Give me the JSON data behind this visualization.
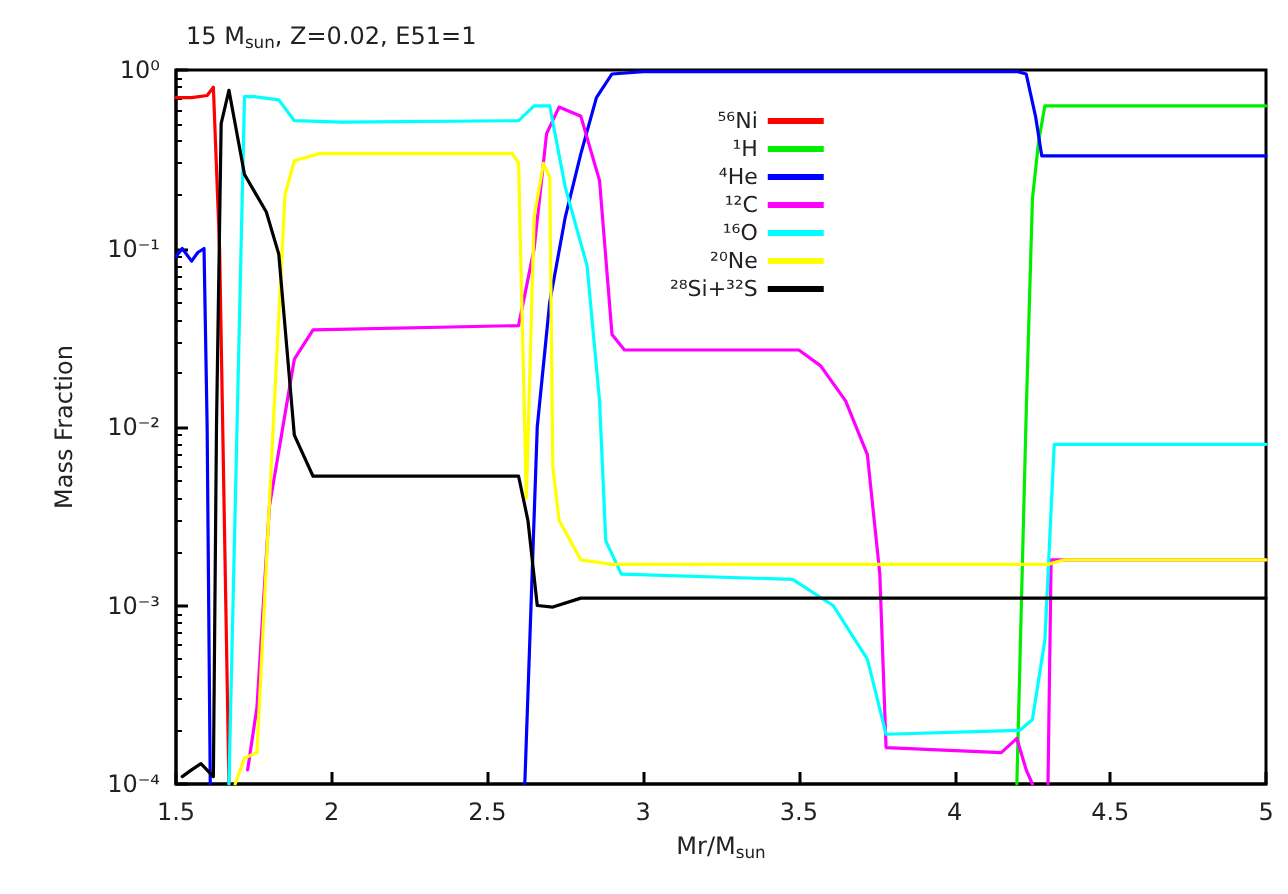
{
  "chart_data": {
    "type": "line",
    "title": "15 M$_{sun}$, Z=0.02, E51=1",
    "xlabel": "Mr/M$_{sun}$",
    "ylabel": "Mass Fraction",
    "xlim": [
      1.5,
      5
    ],
    "xticks": [
      1.5,
      2,
      2.5,
      3,
      3.5,
      4,
      4.5,
      5
    ],
    "ylim": [
      0.0001,
      1
    ],
    "yticks": [
      {
        "value": 0.0001,
        "label": "10⁻⁴"
      },
      {
        "value": 0.001,
        "label": "10⁻³"
      },
      {
        "value": 0.01,
        "label": "10⁻²"
      },
      {
        "value": 0.1,
        "label": "10⁻¹"
      },
      {
        "value": 1,
        "label": "10⁰"
      }
    ],
    "log": "y",
    "grid": false,
    "legend": "top right",
    "marker": "none",
    "line_style": "solid",
    "series": [
      {
        "name": "⁵⁶Ni",
        "color": "#ff0000",
        "x": [
          1.5,
          1.55,
          1.6,
          1.62,
          1.64,
          1.66,
          1.67
        ],
        "values": [
          0.7,
          0.7,
          0.72,
          0.8,
          0.1,
          0.001,
          0.0001
        ]
      },
      {
        "name": "¹H",
        "color": "#00ee00",
        "x": [
          4.2,
          4.23,
          4.25,
          4.27,
          4.29,
          5
        ],
        "values": [
          0.0001,
          0.012,
          0.19,
          0.4,
          0.63,
          0.63
        ]
      },
      {
        "name": "⁴He",
        "color": "#0000ff",
        "x": [
          1.5,
          1.52,
          1.55,
          1.57,
          1.59,
          1.6,
          1.61,
          1.62,
          2.62,
          2.64,
          2.66,
          2.7,
          2.75,
          2.8,
          2.85,
          2.9,
          3,
          4.2,
          4.23,
          4.26,
          4.28,
          5
        ],
        "values": [
          0.09,
          0.1,
          0.085,
          0.095,
          0.1,
          0.01,
          0.0001,
          null,
          0.0001,
          0.001,
          0.01,
          0.05,
          0.15,
          0.34,
          0.7,
          0.95,
          0.98,
          0.98,
          0.95,
          0.55,
          0.33,
          0.33
        ]
      },
      {
        "name": "¹²C",
        "color": "#ff00ff",
        "x": [
          1.73,
          1.76,
          1.8,
          1.88,
          1.94,
          2.6,
          2.65,
          2.69,
          2.73,
          2.8,
          2.86,
          2.9,
          2.94,
          3.5,
          3.57,
          3.65,
          3.72,
          3.76,
          3.78,
          4.15,
          4.2,
          4.23,
          4.25,
          4.27,
          4.3,
          4.31,
          5
        ],
        "values": [
          0.00012,
          0.00027,
          0.0036,
          0.024,
          0.035,
          0.037,
          0.1,
          0.44,
          0.62,
          0.55,
          0.24,
          0.033,
          0.027,
          0.027,
          0.022,
          0.014,
          0.007,
          0.0015,
          0.00016,
          0.00015,
          0.00018,
          0.00012,
          0.0001,
          null,
          0.0001,
          0.0018,
          0.0018
        ]
      },
      {
        "name": "¹⁶O",
        "color": "#00ffff",
        "x": [
          1.67,
          1.72,
          1.75,
          1.83,
          1.88,
          2.03,
          2.6,
          2.65,
          2.7,
          2.75,
          2.82,
          2.86,
          2.88,
          2.93,
          3.48,
          3.61,
          3.72,
          3.78,
          4.21,
          4.25,
          4.29,
          4.32,
          5
        ],
        "values": [
          0.0001,
          0.71,
          0.71,
          0.68,
          0.52,
          0.51,
          0.52,
          0.63,
          0.63,
          0.22,
          0.08,
          0.014,
          0.0023,
          0.0015,
          0.0014,
          0.001,
          0.0005,
          0.00019,
          0.0002,
          0.00023,
          0.00064,
          0.008,
          0.008
        ]
      },
      {
        "name": "²⁰Ne",
        "color": "#ffff00",
        "x": [
          1.69,
          1.72,
          1.76,
          1.81,
          1.85,
          1.88,
          1.96,
          2.58,
          2.6,
          2.625,
          2.65,
          2.68,
          2.7,
          2.71,
          2.73,
          2.8,
          2.9,
          4.3,
          4.35,
          5
        ],
        "values": [
          0.0001,
          0.00014,
          0.00015,
          0.0085,
          0.2,
          0.31,
          0.34,
          0.34,
          0.3,
          0.004,
          0.15,
          0.3,
          0.25,
          0.006,
          0.003,
          0.0018,
          0.0017,
          0.0017,
          0.0018,
          0.0018
        ]
      },
      {
        "name": "²⁸Si+³²S",
        "color": "#000000",
        "x": [
          1.52,
          1.55,
          1.58,
          1.62,
          1.63,
          1.645,
          1.67,
          1.72,
          1.79,
          1.83,
          1.88,
          1.94,
          2.6,
          2.63,
          2.66,
          2.71,
          2.8,
          5
        ],
        "values": [
          0.00011,
          0.00012,
          0.00013,
          0.00011,
          0.01,
          0.5,
          0.77,
          0.26,
          0.16,
          0.093,
          0.009,
          0.0053,
          0.0053,
          0.003,
          0.001,
          0.00098,
          0.0011,
          0.0011
        ]
      }
    ]
  }
}
